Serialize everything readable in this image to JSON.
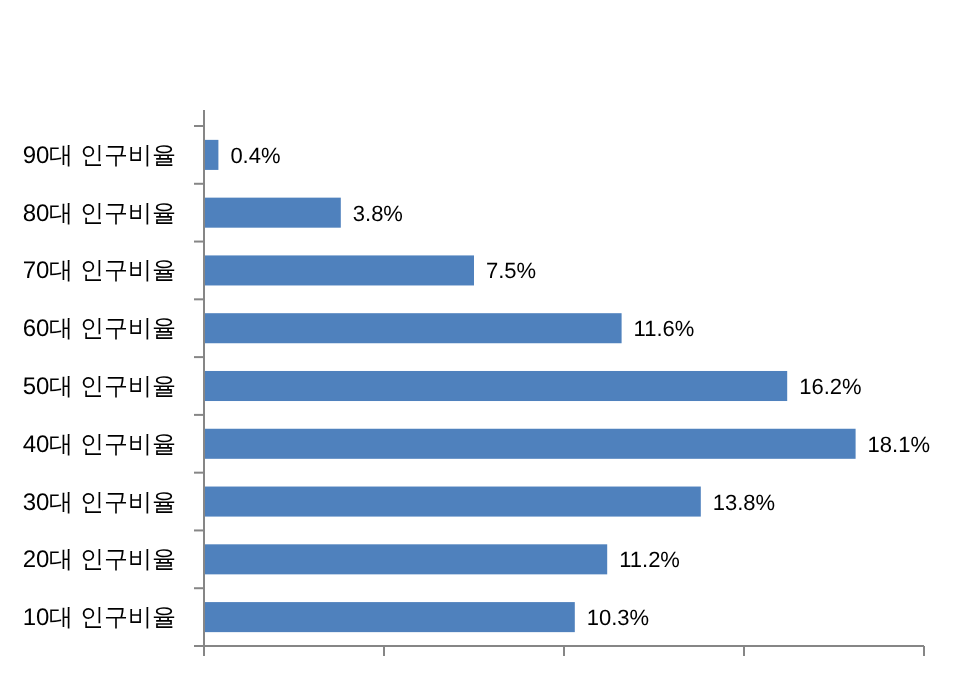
{
  "chart_data": {
    "type": "bar",
    "orientation": "horizontal",
    "categories": [
      "90대 인구비율",
      "80대 인구비율",
      "70대 인구비율",
      "60대 인구비율",
      "50대 인구비율",
      "40대 인구비율",
      "30대 인구비율",
      "20대 인구비율",
      "10대 인구비율"
    ],
    "values": [
      0.4,
      3.8,
      7.5,
      11.6,
      16.2,
      18.1,
      13.8,
      11.2,
      10.3
    ],
    "value_labels": [
      "0.4%",
      "3.8%",
      "7.5%",
      "11.6%",
      "16.2%",
      "18.1%",
      "13.8%",
      "11.2%",
      "10.3%"
    ],
    "color": "#4f81bd",
    "xlim": [
      0,
      20
    ],
    "xticks": [
      {
        "value": 0,
        "label": null
      },
      {
        "value": 5,
        "label": null
      },
      {
        "value": 10,
        "label": null
      },
      {
        "value": 15,
        "label": null
      },
      {
        "value": 20,
        "label": null
      }
    ],
    "tick_labels": "y",
    "grid": false
  }
}
